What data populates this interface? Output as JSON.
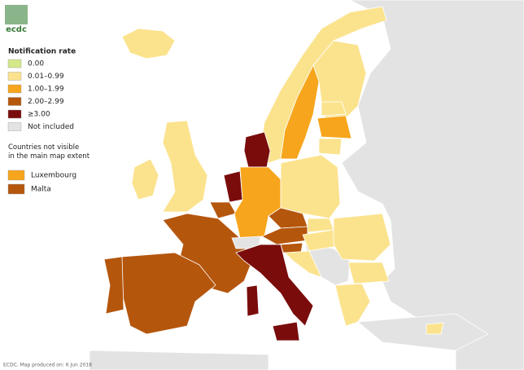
{
  "logo": "ecdc",
  "legend": {
    "title": "Notification rate",
    "items": [
      {
        "label": "0.00",
        "color": "#d4e88a"
      },
      {
        "label": "0.01–0.99",
        "color": "#fbe38e"
      },
      {
        "label": "1.00–1.99",
        "color": "#f7a51c"
      },
      {
        "label": "2.00–2.99",
        "color": "#b5560d"
      },
      {
        "label": "≥3.00",
        "color": "#7a0c0c"
      },
      {
        "label": "Not included",
        "color": "#e3e3e3"
      }
    ]
  },
  "inset_legend": {
    "title": "Countries not visible in the main map extent",
    "items": [
      {
        "label": "Luxembourg",
        "color": "#f7a51c"
      },
      {
        "label": "Malta",
        "color": "#b5560d"
      }
    ]
  },
  "footer": "ECDC. Map produced on: 6 Jun 2018"
}
